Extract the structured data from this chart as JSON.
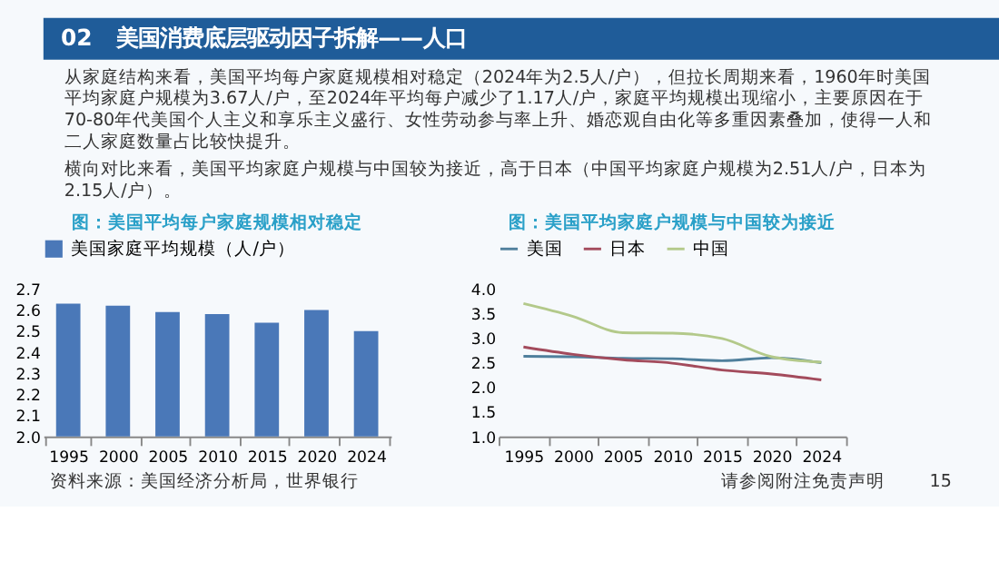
{
  "chart_data": [
    {
      "type": "bar",
      "title": "图：美国平均每户家庭规模相对稳定",
      "categories": [
        "1995",
        "2000",
        "2005",
        "2010",
        "2015",
        "2020",
        "2024"
      ],
      "series": [
        {
          "name": "美国家庭平均规模（人/户）",
          "color": "#4a78b8",
          "values": [
            2.63,
            2.62,
            2.59,
            2.58,
            2.54,
            2.6,
            2.5
          ]
        }
      ],
      "ylim": [
        2.0,
        2.7
      ],
      "yticks": [
        {
          "value": 2.0,
          "label": "2.0"
        },
        {
          "value": 2.1,
          "label": "2.1"
        },
        {
          "value": 2.2,
          "label": "2.2"
        },
        {
          "value": 2.3,
          "label": "2.3"
        },
        {
          "value": 2.4,
          "label": "2.4"
        },
        {
          "value": 2.5,
          "label": "2.5"
        },
        {
          "value": 2.6,
          "label": "2.6"
        },
        {
          "value": 2.7,
          "label": "2.7"
        }
      ],
      "grid": false,
      "legend": "top",
      "annotations": [
        "02",
        "美国消费底层驱动因子拆解——人口",
        "从家庭结构来看，美国平均每户家庭规模相对稳定（2024年为2.5人/户），但拉长周期来看，1960年时美国平均家庭户规模为3.67人/户，至2024年平均每户减少了1.17人/户，家庭平均规模出现缩小，主要原因在于70-80年代美国个人主义和享乐主义盛行、女性劳动参与率上升、婚恋观自由化等多重因素叠加，使得一人和二人家庭数量占比较快提升。",
        "横向对比来看，美国平均家庭户规模与中国较为接近，高于日本（中国平均家庭户规模为2.51人/户，日本为2.15人/户）。",
        "资料来源：美国经济分析局，世界银行"
      ]
    },
    {
      "type": "line",
      "title": "图：美国平均家庭户规模与中国较为接近",
      "categories": [
        "1995",
        "2000",
        "2005",
        "2010",
        "2015",
        "2020",
        "2024"
      ],
      "series": [
        {
          "name": "美国",
          "color": "#4f7f9c",
          "values": [
            2.63,
            2.62,
            2.59,
            2.58,
            2.54,
            2.6,
            2.5
          ]
        },
        {
          "name": "日本",
          "color": "#a34b5c",
          "values": [
            2.82,
            2.67,
            2.56,
            2.49,
            2.35,
            2.27,
            2.15
          ]
        },
        {
          "name": "中国",
          "color": "#b3c98a",
          "values": [
            3.7,
            3.44,
            3.11,
            3.1,
            2.99,
            2.62,
            2.51
          ]
        }
      ],
      "ylim": [
        1.0,
        4.0
      ],
      "yticks": [
        {
          "value": 1.0,
          "label": "1.0"
        },
        {
          "value": 1.5,
          "label": "1.5"
        },
        {
          "value": 2.0,
          "label": "2.0"
        },
        {
          "value": 2.5,
          "label": "2.5"
        },
        {
          "value": 3.0,
          "label": "3.0"
        },
        {
          "value": 3.5,
          "label": "3.5"
        },
        {
          "value": 4.0,
          "label": "4.0"
        }
      ],
      "grid": false,
      "legend": "top",
      "marker": "none",
      "line_style": "solid",
      "annotations": [
        "请参阅附注免责声明",
        "15"
      ]
    }
  ]
}
